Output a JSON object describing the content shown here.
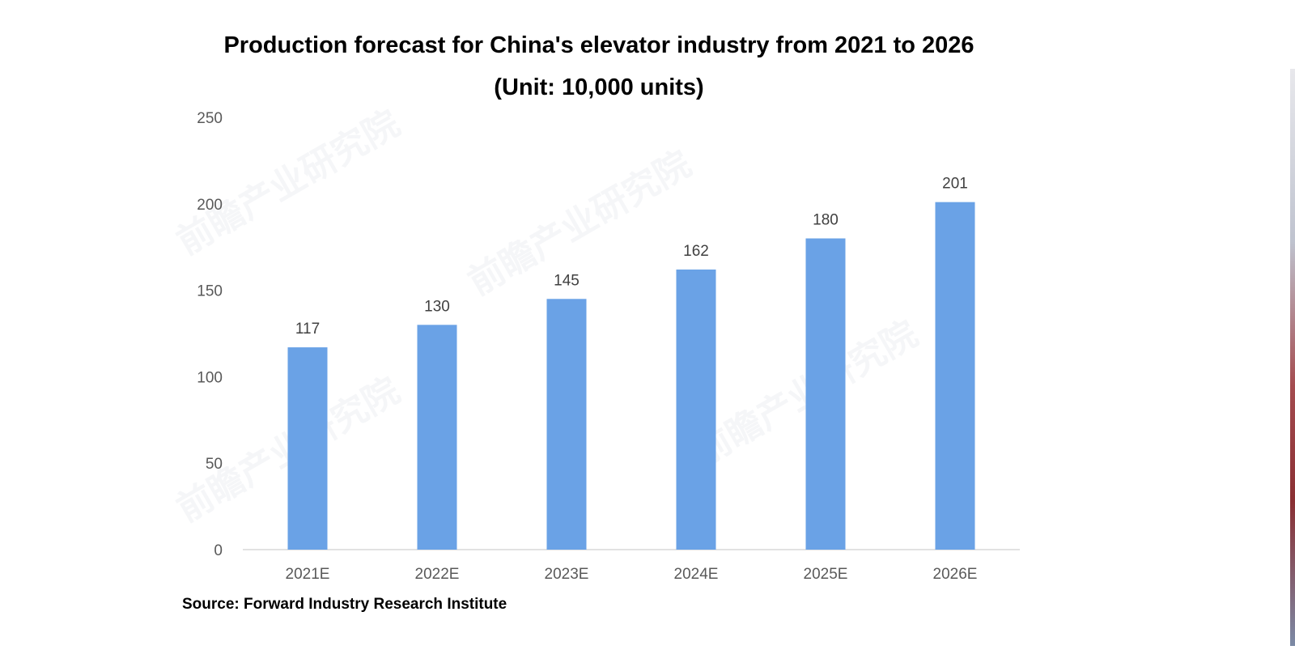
{
  "chart_data": {
    "type": "bar",
    "title": "Production forecast for China's elevator industry from 2021 to 2026",
    "subtitle": "(Unit: 10,000 units)",
    "categories": [
      "2021E",
      "2022E",
      "2023E",
      "2024E",
      "2025E",
      "2026E"
    ],
    "values": [
      117,
      130,
      145,
      162,
      180,
      201
    ],
    "data_labels": [
      "117",
      "130",
      "145",
      "162",
      "180",
      "201"
    ],
    "xlabel": "",
    "ylabel": "",
    "ylim": [
      0,
      250
    ],
    "yticks": [
      0,
      50,
      100,
      150,
      200,
      250
    ],
    "grid": false,
    "legend": "none",
    "bar_color": "#6aa2e6",
    "axis_color": "#d9d9d9",
    "tick_label_color": "#595959",
    "data_label_color": "#404040"
  },
  "source": "Source: Forward Industry Research Institute",
  "watermark_text": "前瞻产业研究院"
}
